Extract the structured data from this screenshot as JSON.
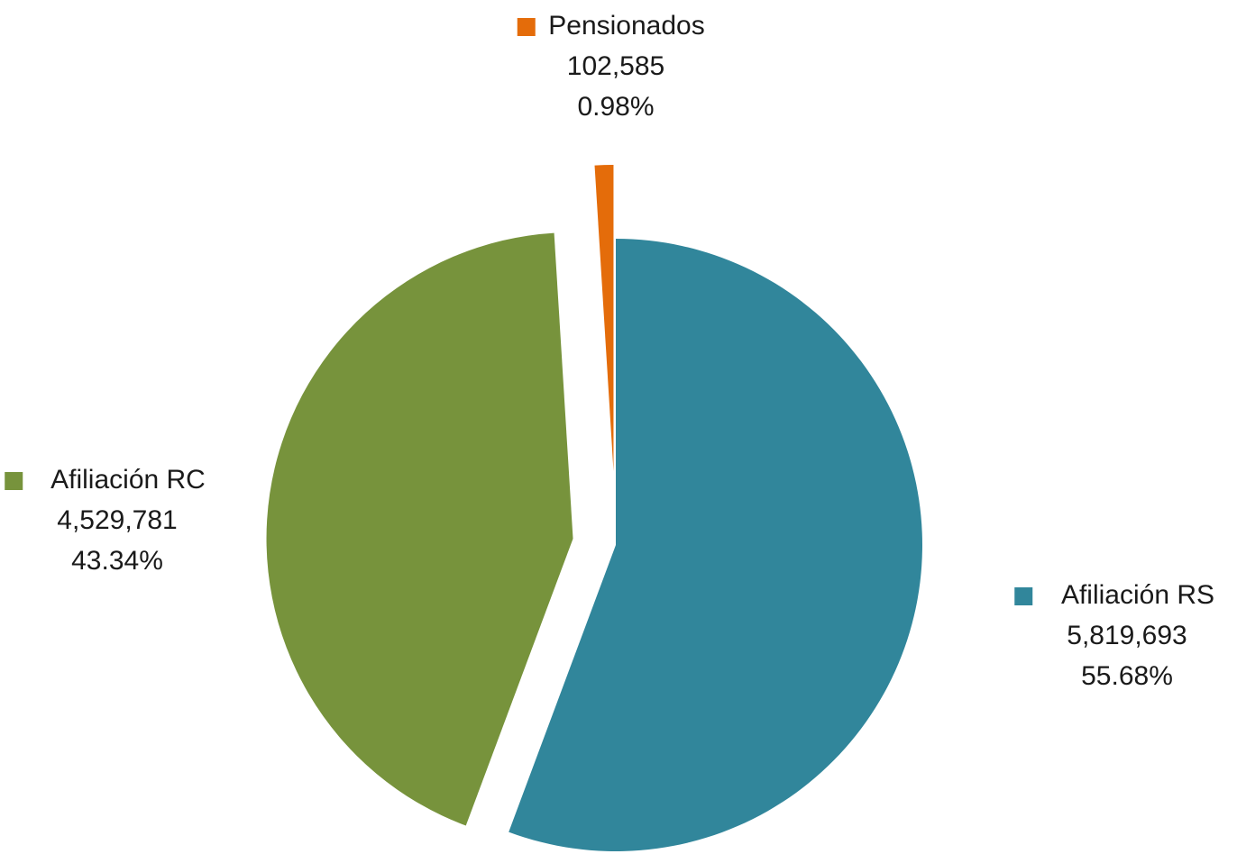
{
  "chart_data": {
    "type": "pie",
    "title": "",
    "legend": "none",
    "slices": [
      {
        "name": "Afiliación RS",
        "value": 5819693,
        "value_label": "5,819,693",
        "percent_label": "55.68%",
        "color": "#31869B"
      },
      {
        "name": "Afiliación RC",
        "value": 4529781,
        "value_label": "4,529,781",
        "percent_label": "43.34%",
        "color": "#77933C"
      },
      {
        "name": "Pensionados",
        "value": 102585,
        "value_label": "102,585",
        "percent_label": "0.98%",
        "color": "#E46C0A"
      }
    ]
  }
}
